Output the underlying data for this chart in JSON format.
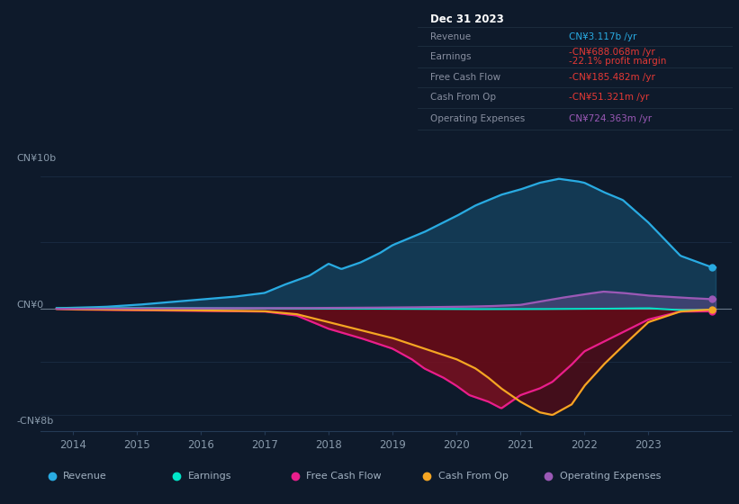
{
  "bg_color": "#0e1a2b",
  "plot_bg_color": "#0e1a2b",
  "ylabel_top": "CN¥10b",
  "ylabel_bottom": "-CN¥8b",
  "ylabel_mid": "CN¥0",
  "revenue_color": "#29abe2",
  "earnings_color": "#00e5c8",
  "fcf_color": "#e91e8c",
  "cashop_color": "#f5a623",
  "opex_color": "#9b59b6",
  "grid_color": "#243a55",
  "zero_line_color": "#8899aa",
  "text_color": "#8899aa",
  "title_color": "#ffffff",
  "value_color_blue": "#29abe2",
  "value_color_red": "#e53935",
  "value_color_purple": "#9b59b6",
  "info_label_color": "#888fa0",
  "box_bg": "#080e18",
  "legend_bg": "#131f2e"
}
